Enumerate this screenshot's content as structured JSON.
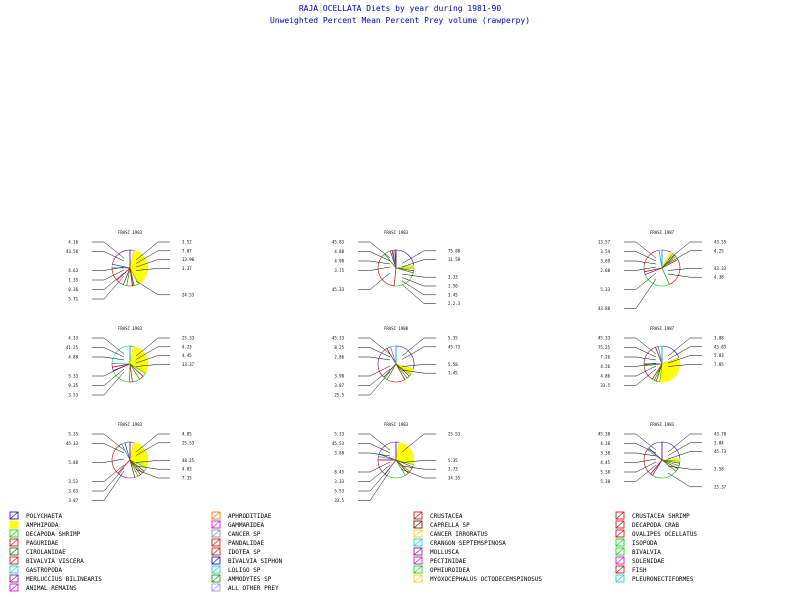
{
  "page": {
    "title": "RAJA OCELLATA Diets by year during 1981-90",
    "subtitle": "Unweighted Percent Mean Percent Prey  volume (rawperpy)"
  },
  "chart_data": {
    "type": "pie",
    "series_colors": [
      "#0000cc",
      "#ffff00",
      "#00cc00",
      "#cc0000",
      "#00cc00",
      "#cc0000",
      "#00cc00",
      "#880088",
      "#cc0000",
      "#00cccc",
      "#880088",
      "#ff8800",
      "#cc0000",
      "#cc00cc",
      "#0000cc",
      "#888888",
      "#ffcc00",
      "#00cccc",
      "#0000cc",
      "#00cccc",
      "#cc0000",
      "#cc00cc",
      "#00cccc",
      "#888888",
      "#00cc00"
    ],
    "legend": [
      "POLYCHAETA",
      "AMPHIPODA",
      "DECAPODA SHRIMP",
      "PAGURIDAE",
      "CIROLANIDAE",
      "BIVALVIA VISCERA",
      "GASTROPODA",
      "MERLUCCIUS BILINEARIS",
      "ANIMAL REMAINS",
      "APHRODITIDAE",
      "GAMMARIDEA",
      "CANCER SP",
      "PANDALIDAE",
      "IDOTEA SP",
      "BIVALVIA SIPHON",
      "LOLIGO SP",
      "AMMODYTES SP",
      "ALL OTHER PREY",
      "CRUSTACEA",
      "CAPRELLA SP",
      "CANCER IRRORATUS",
      "CRANGON SEPTEMSPINOSA",
      "MOLLUSCA",
      "PECTINIDAE",
      "OPHIUROIDEA",
      "MYOXOCEPHALUS OCTODECEMSPINOSUS",
      "CRUSTACEA SHRIMP",
      "DECAPODA CRAB",
      "OVALIPES OCELLATUS",
      "ISOPODA",
      "BIVALVIA",
      "SOLENIDAE",
      "FISH",
      "PLEURONECTIFORMES"
    ],
    "legend_colors": [
      "#0000cc",
      "#ffff00",
      "#00cc00",
      "#cc0000",
      "#006600",
      "#cc0000",
      "#00cccc",
      "#880088",
      "#cc00cc",
      "#ff6600",
      "#cc00cc",
      "#888888",
      "#cc0000",
      "#cc0000",
      "#0000cc",
      "#00cccc",
      "#008800",
      "#8888ff",
      "#cc0000",
      "#660000",
      "#ffcc00",
      "#00cccc",
      "#880088",
      "#cc00cc",
      "#00cc00",
      "#ffcc00",
      "#cc0000",
      "#cc0000",
      "#cc0000",
      "#00cc00",
      "#00cc00",
      "#cc00cc",
      "#cc0000",
      "#00cccc"
    ],
    "pies": [
      {
        "label": "FRASC 1983",
        "left": [
          "4.16",
          "43.56",
          "",
          "4.63",
          "1.35",
          "0.36",
          "5.71"
        ],
        "right": [
          "3.52",
          "7.87",
          "13.90",
          "3.37",
          "",
          "",
          "24.53"
        ],
        "values": [
          4.16,
          43.56,
          4.63,
          1.35,
          0.36,
          5.71,
          3.52,
          7.87,
          13.9,
          3.37,
          24.53
        ]
      },
      {
        "label": "FRASC 1983",
        "left": [
          "45.83",
          "4.88",
          "4.98",
          "3.75",
          "",
          "45.33"
        ],
        "right": [
          "",
          "75.88",
          "11.58",
          "",
          "3.33",
          "1.50",
          "3.45",
          "2.2.3"
        ],
        "values": [
          45.83,
          4.88,
          4.98,
          3.75,
          45.33,
          75.88,
          11.58,
          3.33,
          1.5,
          3.45,
          2.23
        ]
      },
      {
        "label": "FRASC 1987",
        "left": [
          "13.57",
          "3.54",
          "3.69",
          "2.68",
          "",
          "5.33",
          "",
          "43.88"
        ],
        "right": [
          "43.55",
          "4.25",
          "",
          "43.33",
          "4.38"
        ],
        "values": [
          13.57,
          3.54,
          3.69,
          2.68,
          5.33,
          43.88,
          43.55,
          4.25,
          43.33,
          4.38
        ]
      },
      {
        "label": "FRASC 1983",
        "left": [
          "4.33",
          "41.25",
          "4.88",
          "",
          "5.33",
          "9.25",
          "3.53"
        ],
        "right": [
          "25.33",
          "4.23",
          "4.45",
          "33.37"
        ],
        "values": [
          4.33,
          41.25,
          4.88,
          5.33,
          9.25,
          3.53,
          25.33,
          4.23,
          4.45,
          33.37
        ]
      },
      {
        "label": "FRASC 1988",
        "left": [
          "45.33",
          "8.25",
          "2.86",
          "",
          "3.98",
          "3.87",
          "25.5"
        ],
        "right": [
          "5.35",
          "45.73",
          "",
          "5.58",
          "7.45"
        ],
        "values": [
          45.33,
          8.25,
          2.86,
          3.98,
          3.87,
          25.5,
          5.35,
          45.73,
          5.58,
          7.45
        ]
      },
      {
        "label": "FRASC 1987",
        "left": [
          "45.33",
          "75.25",
          "7.26",
          "4.26",
          "4.86",
          "33.5"
        ],
        "right": [
          "3.88",
          "43.83",
          "5.83",
          "7.85"
        ],
        "values": [
          45.33,
          75.25,
          7.26,
          4.26,
          4.86,
          33.5,
          3.88,
          43.83,
          5.83,
          7.85
        ]
      },
      {
        "label": "FRASC 1983",
        "left": [
          "5.35",
          "45.33",
          "",
          "5.88",
          "",
          "3.53",
          "3.63",
          "3.87"
        ],
        "right": [
          "4.85",
          "25.53",
          "",
          "48.25",
          "4.83",
          "7.35"
        ],
        "values": [
          5.35,
          45.33,
          5.88,
          3.53,
          3.63,
          3.87,
          4.85,
          25.53,
          48.25,
          4.83,
          7.35
        ]
      },
      {
        "label": "FRASC 1983",
        "left": [
          "5.33",
          "45.53",
          "3.88",
          "",
          "8.45",
          "3.33",
          "5.53",
          "33.5"
        ],
        "right": [
          "25.53",
          "",
          "",
          "5.35",
          "3.73",
          "34.35"
        ],
        "values": [
          5.33,
          45.53,
          3.88,
          8.45,
          3.33,
          5.53,
          33.5,
          25.53,
          5.35,
          3.73,
          34.35
        ]
      },
      {
        "label": "FRASC 1983",
        "left": [
          "45.38",
          "4.38",
          "3.38",
          "4.45",
          "5.38",
          "5.38"
        ],
        "right": [
          "43.78",
          "3.84",
          "45.73",
          "",
          "3.58",
          "",
          "25.37"
        ],
        "values": [
          45.38,
          4.38,
          3.38,
          4.45,
          5.38,
          5.38,
          43.78,
          3.84,
          45.73,
          3.58,
          25.37
        ]
      }
    ]
  }
}
